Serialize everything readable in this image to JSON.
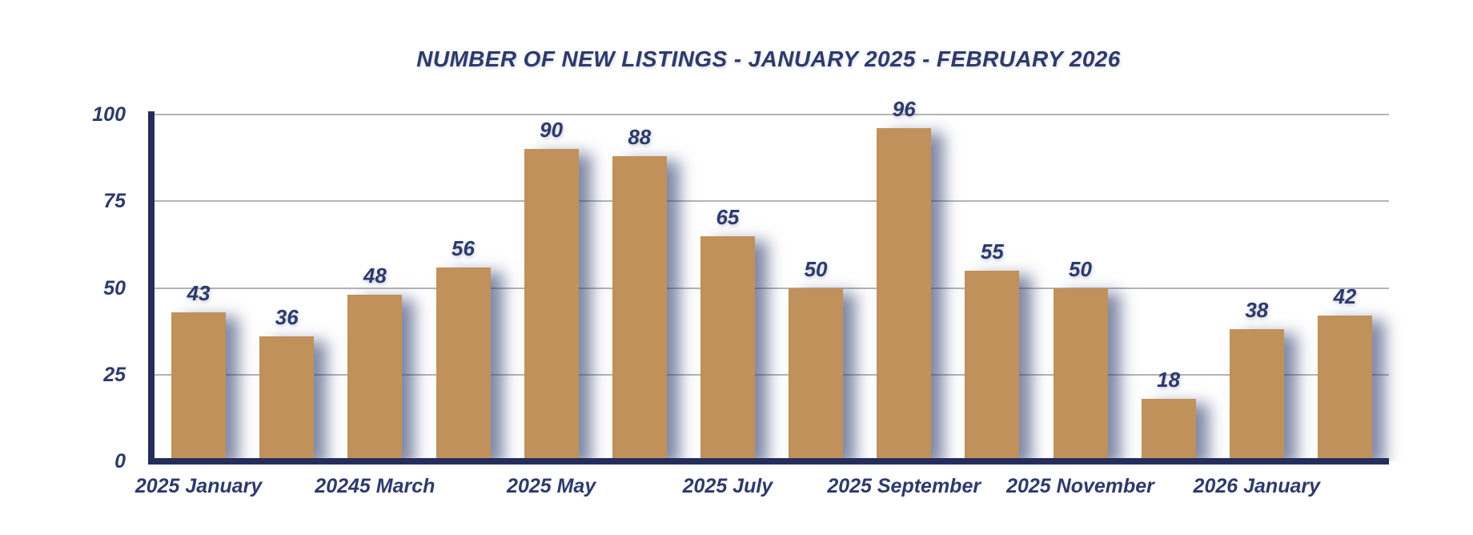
{
  "chart_data": {
    "type": "bar",
    "title": "NUMBER OF NEW LISTINGS - JANUARY 2025 - FEBRUARY 2026",
    "categories": [
      "2025 January",
      "",
      "20245 March",
      "",
      "2025 May",
      "",
      "2025 July",
      "",
      "2025 September",
      "",
      "2025 November",
      "",
      "2026 January",
      ""
    ],
    "values": [
      43,
      36,
      48,
      56,
      90,
      88,
      65,
      50,
      96,
      55,
      50,
      18,
      38,
      42
    ],
    "show_value_labels": true,
    "xlabel": "",
    "ylabel": "",
    "ylim": [
      0,
      100
    ],
    "yticks": [
      0,
      25,
      50,
      75,
      100
    ],
    "grid": true,
    "legend_position": "none",
    "colors": {
      "bar": "#c0915a",
      "text": "#2d3a6b",
      "axis": "#242e5c",
      "gridline": "#b4b4b8",
      "background": "#ffffff",
      "shadow": "rgba(45,58,107,0.6)"
    }
  }
}
